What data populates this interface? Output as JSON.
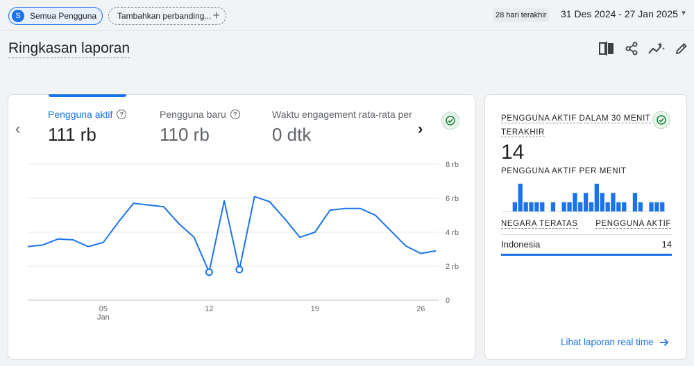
{
  "topbar": {
    "segment_avatar": "S",
    "segment_label": "Semua Pengguna",
    "add_comparison_label": "Tambahkan perbanding...",
    "add_icon": "plus-icon",
    "date_prefix": "28 hari terakhir",
    "date_range": "31 Des 2024 - 27 Jan 2025",
    "date_dropdown_icon": "caret-down-icon"
  },
  "page": {
    "title": "Ringkasan laporan",
    "actions": [
      "compare-icon",
      "share-icon",
      "insights-icon",
      "edit-icon"
    ]
  },
  "main_card": {
    "metrics": [
      {
        "label": "Pengguna aktif",
        "value": "111 rb",
        "selected": true
      },
      {
        "label": "Pengguna baru",
        "value": "110 rb",
        "selected": false
      },
      {
        "label": "Waktu engagement rata-rata per",
        "value": "0 dtk",
        "selected": false
      }
    ],
    "accent": "#1a73e8"
  },
  "chart_data": {
    "type": "line",
    "x": [
      "31 Des",
      "1 Jan",
      "2 Jan",
      "3 Jan",
      "4 Jan",
      "5 Jan",
      "6 Jan",
      "7 Jan",
      "8 Jan",
      "9 Jan",
      "10 Jan",
      "11 Jan",
      "12 Jan",
      "13 Jan",
      "14 Jan",
      "15 Jan",
      "16 Jan",
      "17 Jan",
      "18 Jan",
      "19 Jan",
      "20 Jan",
      "21 Jan",
      "22 Jan",
      "23 Jan",
      "24 Jan",
      "25 Jan",
      "26 Jan",
      "27 Jan"
    ],
    "series": [
      {
        "values": [
          3150,
          3250,
          3600,
          3550,
          3150,
          3400,
          4600,
          5700,
          5600,
          5500,
          4500,
          3700,
          1650,
          5850,
          1800,
          6100,
          5800,
          4800,
          3700,
          4000,
          5300,
          5400,
          5400,
          5000,
          4100,
          3200,
          2750,
          2900
        ],
        "color": "#1a73e8"
      }
    ],
    "anomalies": [
      "12 Jan",
      "14 Jan"
    ],
    "xticks": [
      {
        "label": "05",
        "sub": "Jan"
      },
      {
        "label": "12",
        "sub": ""
      },
      {
        "label": "19",
        "sub": ""
      },
      {
        "label": "26",
        "sub": ""
      }
    ],
    "yticks": [
      "8 rb",
      "6 rb",
      "4 rb",
      "2 rb",
      "0"
    ],
    "ylim": [
      0,
      8000
    ],
    "grid": true,
    "xlabel": "",
    "ylabel": ""
  },
  "realtime": {
    "title_line1": "PENGGUNA AKTIF DALAM 30 MENIT",
    "title_line2": "TERAKHIR",
    "value": "14",
    "per_minute_label": "PENGGUNA AKTIF PER MENIT",
    "per_minute_values": [
      0,
      0,
      1,
      3,
      1,
      1,
      1,
      1,
      0,
      1,
      0,
      1,
      1,
      2,
      1,
      2,
      1,
      3,
      2,
      1,
      2,
      1,
      1,
      0,
      2,
      1,
      0,
      1,
      1,
      1
    ],
    "col_country": "NEGARA TERATAS",
    "col_users": "PENGGUNA AKTIF",
    "rows": [
      {
        "country": "Indonesia",
        "users": "14"
      }
    ],
    "link_label": "Lihat laporan real time"
  }
}
